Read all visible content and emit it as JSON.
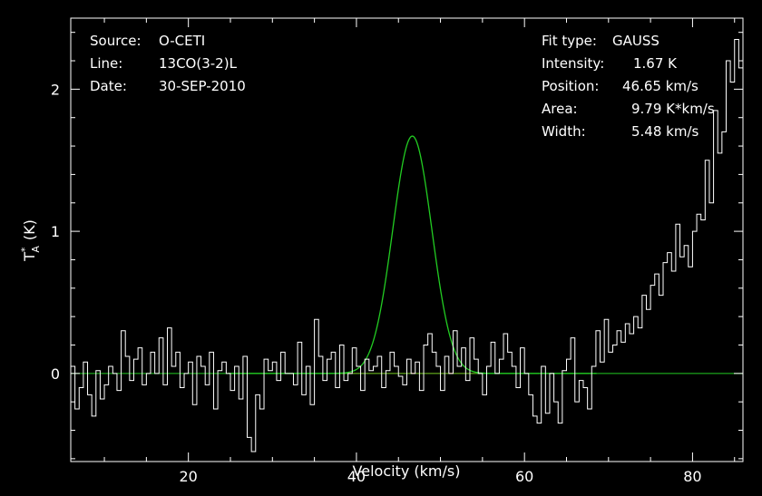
{
  "colors": {
    "background": "#000000",
    "foreground": "#ffffff",
    "fit": "#22cc22",
    "baseline": "#cc0000"
  },
  "info_left": [
    {
      "label": "Source:",
      "value": "O-CETI"
    },
    {
      "label": "Line:",
      "value": "13CO(3-2)L"
    },
    {
      "label": "Date:",
      "value": "30-SEP-2010"
    }
  ],
  "info_right": {
    "fit_type_label": "Fit type:",
    "fit_type_value": "GAUSS",
    "intensity_label": "Intensity:",
    "intensity_value": "1.67 K",
    "position_label": "Position:",
    "position_value": "46.65 km/s",
    "area_label": "Area:",
    "area_value": "9.79 K*km/s",
    "width_label": "Width:",
    "width_value": "5.48 km/s"
  },
  "chart_data": {
    "type": "line",
    "xlabel": "Velocity (km/s)",
    "ylabel": "T_A^* (K)",
    "xlim": [
      6,
      86
    ],
    "ylim": [
      -0.62,
      2.5
    ],
    "xticks": [
      20,
      40,
      60,
      80
    ],
    "yticks": [
      0,
      1,
      2
    ],
    "grid": false,
    "series": [
      {
        "role": "spectrum",
        "x_start": 6,
        "x_step": 0.5,
        "y": [
          0.05,
          -0.25,
          -0.1,
          0.08,
          -0.15,
          -0.3,
          0.02,
          -0.18,
          -0.08,
          0.05,
          0.0,
          -0.12,
          0.3,
          0.12,
          -0.05,
          0.1,
          0.18,
          -0.08,
          0.0,
          0.15,
          0.0,
          0.25,
          -0.08,
          0.32,
          0.05,
          0.15,
          -0.1,
          0.0,
          0.08,
          -0.22,
          0.12,
          0.05,
          -0.08,
          0.15,
          -0.25,
          0.02,
          0.08,
          0.0,
          -0.12,
          0.05,
          -0.18,
          0.12,
          -0.45,
          -0.55,
          -0.15,
          -0.25,
          0.1,
          0.02,
          0.08,
          -0.05,
          0.15,
          0.0,
          0.0,
          -0.08,
          0.22,
          -0.15,
          0.05,
          -0.22,
          0.38,
          0.12,
          -0.05,
          0.1,
          0.15,
          -0.1,
          0.2,
          -0.05,
          0.0,
          0.18,
          0.05,
          -0.12,
          0.1,
          0.02,
          0.05,
          0.12,
          -0.1,
          0.02,
          0.15,
          0.05,
          -0.02,
          -0.08,
          0.1,
          0.0,
          0.08,
          -0.12,
          0.2,
          0.28,
          0.15,
          0.05,
          -0.12,
          0.12,
          0.0,
          0.3,
          0.05,
          0.18,
          -0.05,
          0.25,
          0.1,
          0.0,
          -0.15,
          0.05,
          0.22,
          0.0,
          0.1,
          0.28,
          0.15,
          0.05,
          -0.1,
          0.18,
          0.0,
          -0.15,
          -0.3,
          -0.35,
          0.05,
          -0.28,
          0.0,
          -0.2,
          -0.35,
          0.02,
          0.1,
          0.25,
          -0.2,
          -0.05,
          -0.1,
          -0.25,
          0.05,
          0.3,
          0.08,
          0.38,
          0.15,
          0.2,
          0.3,
          0.22,
          0.35,
          0.28,
          0.4,
          0.32,
          0.55,
          0.45,
          0.62,
          0.7,
          0.55,
          0.78,
          0.85,
          0.72,
          1.05,
          0.82,
          0.9,
          0.75,
          1.0,
          1.12,
          1.08,
          1.5,
          1.2,
          1.85,
          1.55,
          1.7,
          2.2,
          2.05,
          2.35,
          2.15,
          2.3,
          1.9,
          1.45,
          1.7,
          1.35,
          1.1,
          0.95,
          0.8,
          0.85,
          0.55,
          0.72,
          0.48,
          0.3,
          -0.05,
          0.45,
          0.05,
          0.15,
          0.0,
          0.22,
          0.15,
          -0.05,
          0.1,
          0.3,
          -0.1,
          0.18,
          0.05,
          0.1,
          -0.28,
          0.15,
          -0.1,
          0.2,
          -0.05,
          -0.08,
          0.1,
          -0.25,
          -0.12,
          0.0,
          0.15,
          0.05,
          -0.1,
          -0.05,
          0.12,
          0.05,
          0.22,
          0.02,
          -0.1,
          0.08,
          0.18,
          -0.08,
          -0.02,
          0.22,
          0.12,
          -0.05,
          -0.1,
          0.05,
          0.1,
          0.2,
          0.02,
          0.15,
          0.3,
          0.18,
          -0.05,
          0.08,
          0.15,
          -0.12,
          0.05,
          0.18,
          -0.05,
          0.02,
          0.1,
          0.32,
          0.22,
          0.0,
          0.12,
          0.1,
          0.28,
          0.0,
          0.15,
          0.05,
          -0.05,
          0.08,
          0.18,
          -0.1,
          0.0,
          0.05,
          0.15,
          0.1,
          -0.1,
          0.0,
          -0.05,
          0.15,
          -0.2,
          -0.35,
          -0.15,
          0.05,
          -0.38,
          -0.25,
          -0.1,
          0.15,
          0.02,
          0.08,
          -0.05,
          0.12,
          -0.1,
          -0.05,
          0.05,
          0.12,
          -0.05,
          0.1,
          -0.02,
          -0.12,
          0.05,
          -0.08,
          0.1,
          0.05,
          -0.1,
          -0.25,
          0.05,
          0.0,
          -0.45,
          0.1,
          0.05,
          -0.12,
          0.0,
          0.05,
          0.08,
          0.02,
          0.1,
          0.12,
          0.05,
          -0.1,
          0.22,
          0.1,
          0.05,
          0.15,
          0.0,
          0.2,
          0.32,
          -0.02,
          0.05,
          0.12,
          0.3,
          0.0,
          0.08,
          -0.1,
          0.05,
          0.18,
          0.02
        ]
      },
      {
        "role": "gaussian-fit",
        "amplitude": 1.67,
        "center": 46.65,
        "fwhm": 5.48
      },
      {
        "role": "fit-baseline",
        "x_range": [
          38,
          55
        ],
        "y": 0
      }
    ]
  }
}
